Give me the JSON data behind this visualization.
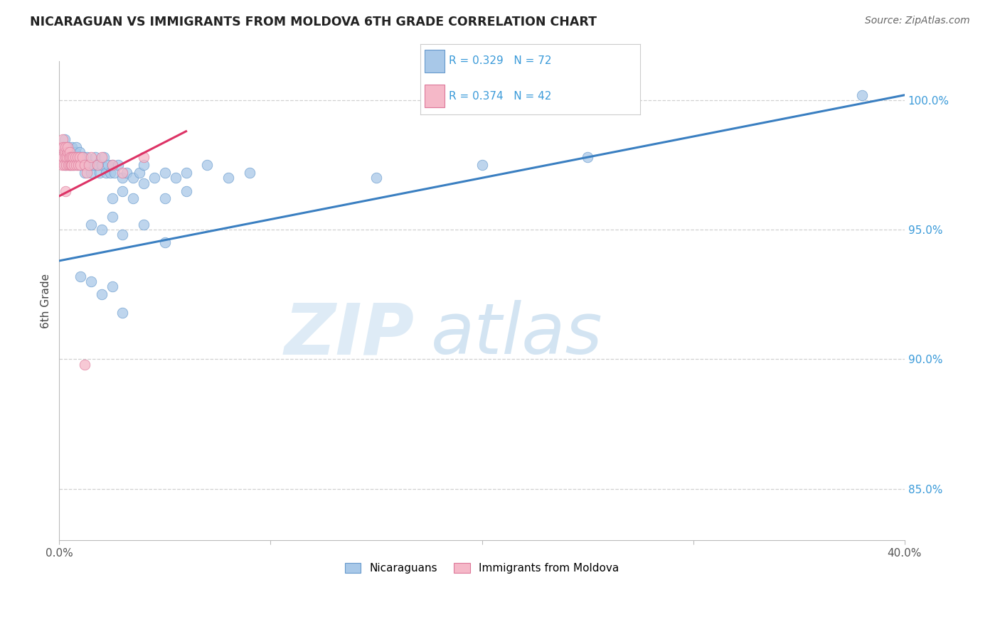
{
  "title": "NICARAGUAN VS IMMIGRANTS FROM MOLDOVA 6TH GRADE CORRELATION CHART",
  "source": "Source: ZipAtlas.com",
  "ylabel_label": "6th Grade",
  "blue_R": 0.329,
  "blue_N": 72,
  "pink_R": 0.374,
  "pink_N": 42,
  "blue_color": "#a8c8e8",
  "blue_edge_color": "#6699cc",
  "blue_line_color": "#3a7fc1",
  "pink_color": "#f5b8c8",
  "pink_edge_color": "#dd7799",
  "pink_line_color": "#dd3366",
  "legend_text_color": "#3a9ad9",
  "right_axis_color": "#3a9ad9",
  "y_grid_color": "#d0d0d0",
  "x_lim": [
    0.0,
    40.0
  ],
  "y_lim": [
    83.0,
    101.5
  ],
  "y_ticks": [
    85.0,
    90.0,
    95.0,
    100.0
  ],
  "blue_line_x0": 0.0,
  "blue_line_y0": 93.8,
  "blue_line_x1": 40.0,
  "blue_line_y1": 100.2,
  "pink_line_x0": 0.0,
  "pink_line_y0": 96.3,
  "pink_line_x1": 6.0,
  "pink_line_y1": 98.8,
  "watermark_zip_color": "#c8dff0",
  "watermark_atlas_color": "#b0cfe8",
  "blue_scatter_x": [
    0.1,
    0.15,
    0.2,
    0.25,
    0.28,
    0.3,
    0.32,
    0.35,
    0.38,
    0.4,
    0.42,
    0.45,
    0.48,
    0.5,
    0.52,
    0.55,
    0.58,
    0.6,
    0.62,
    0.65,
    0.68,
    0.7,
    0.72,
    0.75,
    0.78,
    0.8,
    0.85,
    0.9,
    0.95,
    1.0,
    1.05,
    1.1,
    1.15,
    1.2,
    1.25,
    1.3,
    1.4,
    1.5,
    1.6,
    1.7,
    1.8,
    1.9,
    2.0,
    2.2,
    2.4,
    2.6,
    2.8,
    3.0,
    3.5,
    4.0,
    4.5,
    5.0,
    6.0,
    7.0,
    8.0,
    10.0,
    12.0,
    15.0,
    18.0,
    22.0,
    25.0,
    28.0,
    30.0,
    33.0,
    35.0,
    38.0,
    0.5,
    0.8,
    1.2,
    1.5,
    2.0,
    2.5
  ],
  "blue_scatter_y": [
    97.8,
    98.2,
    97.5,
    98.0,
    97.2,
    97.8,
    96.5,
    97.0,
    98.5,
    97.8,
    97.2,
    96.8,
    97.5,
    98.0,
    97.2,
    96.5,
    97.8,
    97.0,
    96.8,
    97.5,
    96.2,
    97.0,
    97.5,
    96.8,
    97.2,
    97.5,
    96.8,
    97.0,
    97.5,
    96.5,
    97.2,
    97.8,
    96.5,
    97.0,
    96.8,
    97.5,
    97.2,
    96.8,
    97.0,
    97.5,
    96.2,
    97.0,
    97.5,
    96.8,
    96.5,
    97.2,
    96.8,
    97.0,
    96.5,
    97.2,
    97.8,
    96.5,
    96.8,
    97.2,
    97.0,
    97.5,
    96.8,
    97.0,
    97.5,
    97.8,
    97.2,
    97.5,
    97.8,
    98.2,
    98.0,
    100.2,
    95.2,
    95.5,
    94.8,
    95.2,
    94.5,
    95.0
  ],
  "pink_scatter_x": [
    0.08,
    0.1,
    0.12,
    0.15,
    0.18,
    0.2,
    0.22,
    0.25,
    0.28,
    0.3,
    0.32,
    0.35,
    0.38,
    0.4,
    0.42,
    0.45,
    0.48,
    0.5,
    0.52,
    0.55,
    0.58,
    0.6,
    0.65,
    0.7,
    0.75,
    0.8,
    0.85,
    0.9,
    0.95,
    1.0,
    1.1,
    1.2,
    1.3,
    1.5,
    1.8,
    2.0,
    2.5,
    3.0,
    3.5,
    4.0,
    0.3,
    1.2
  ],
  "pink_scatter_y": [
    97.5,
    98.0,
    97.8,
    98.2,
    97.5,
    98.5,
    97.8,
    98.0,
    97.5,
    97.8,
    97.2,
    97.5,
    97.8,
    98.0,
    97.2,
    97.5,
    97.8,
    97.5,
    97.2,
    97.5,
    97.8,
    97.5,
    97.8,
    97.2,
    97.5,
    97.8,
    97.5,
    97.2,
    97.8,
    97.5,
    97.8,
    97.5,
    97.2,
    97.5,
    97.8,
    97.5,
    97.2,
    97.5,
    97.8,
    98.0,
    89.8,
    96.2
  ]
}
